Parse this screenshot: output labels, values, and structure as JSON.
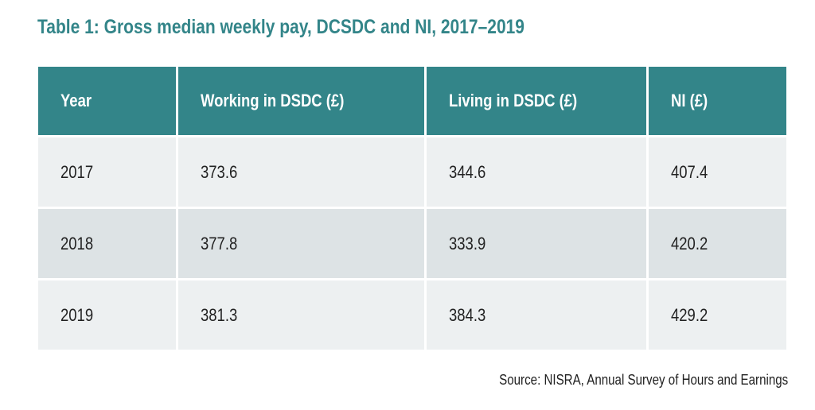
{
  "title": "Table 1: Gross median weekly pay, DCSDC and NI, 2017–2019",
  "table": {
    "headers": [
      "Year",
      "Working in DSDC (£)",
      "Living in DSDC (£)",
      "NI (£)"
    ],
    "rows": [
      [
        "2017",
        "373.6",
        "344.6",
        "407.4"
      ],
      [
        "2018",
        "377.8",
        "333.9",
        "420.2"
      ],
      [
        "2019",
        "381.3",
        "384.3",
        "429.2"
      ]
    ]
  },
  "source": "Source: NISRA, Annual Survey of Hours and Earnings",
  "colors": {
    "header_bg": "#338589",
    "row_light": "#edf0f1",
    "row_dark": "#dde3e5"
  }
}
